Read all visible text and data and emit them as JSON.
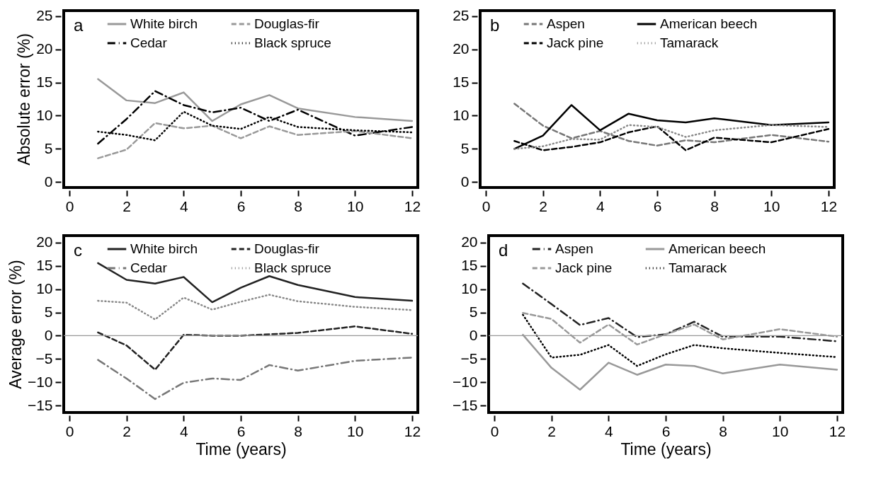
{
  "chart_data": [
    {
      "type": "line",
      "title": "a",
      "ylabel": "Absolute error (%)",
      "x": [
        1,
        2,
        3,
        4,
        5,
        6,
        7,
        8,
        10,
        12
      ],
      "xlim": [
        -0.2,
        12.2
      ],
      "xticks": [
        0,
        2,
        4,
        6,
        8,
        10,
        12
      ],
      "ylim": [
        -0.8,
        25.8
      ],
      "yticks": [
        0,
        5,
        10,
        15,
        20,
        25
      ],
      "grid": false,
      "legend": "top",
      "series": [
        {
          "name": "White birch",
          "color": "#999999",
          "line_style": "solid",
          "values": [
            15.5,
            12.3,
            11.9,
            13.5,
            9.2,
            11.7,
            13.1,
            11.1,
            9.8,
            9.2
          ]
        },
        {
          "name": "Cedar",
          "color": "#000000",
          "line_style": "dashdot",
          "values": [
            5.8,
            9.5,
            13.7,
            11.6,
            10.5,
            11.2,
            9.2,
            10.9,
            7.0,
            8.3
          ]
        },
        {
          "name": "Douglas-fir",
          "color": "#999999",
          "line_style": "dashed",
          "values": [
            3.6,
            4.9,
            8.9,
            8.1,
            8.5,
            6.6,
            8.4,
            7.1,
            7.7,
            6.6
          ]
        },
        {
          "name": "Black spruce",
          "color": "#000000",
          "line_style": "dotted",
          "values": [
            7.6,
            7.1,
            6.3,
            10.6,
            8.5,
            8.0,
            9.8,
            8.3,
            7.8,
            7.5
          ]
        }
      ]
    },
    {
      "type": "line",
      "title": "b",
      "x": [
        1,
        2,
        3,
        4,
        5,
        6,
        7,
        8,
        10,
        12
      ],
      "xlim": [
        -0.2,
        12.2
      ],
      "xticks": [
        0,
        2,
        4,
        6,
        8,
        10,
        12
      ],
      "ylim": [
        -0.8,
        25.8
      ],
      "yticks": [
        0,
        5,
        10,
        15,
        20,
        25
      ],
      "grid": false,
      "legend": "top",
      "series": [
        {
          "name": "Aspen",
          "color": "#777777",
          "line_style": "dashed",
          "values": [
            11.8,
            8.5,
            6.6,
            7.7,
            6.2,
            5.5,
            6.3,
            6.0,
            7.1,
            6.1
          ]
        },
        {
          "name": "Jack pine",
          "color": "#000000",
          "line_style": "dashed",
          "values": [
            6.2,
            4.8,
            5.3,
            6.0,
            7.5,
            8.4,
            4.8,
            6.7,
            6.0,
            8.0
          ]
        },
        {
          "name": "American beech",
          "color": "#000000",
          "line_style": "solid",
          "values": [
            5.0,
            7.0,
            11.6,
            7.8,
            10.3,
            9.3,
            9.0,
            9.6,
            8.6,
            9.0
          ]
        },
        {
          "name": "Tamarack",
          "color": "#888888",
          "line_style": "dotted",
          "values": [
            5.0,
            5.4,
            6.5,
            6.4,
            8.6,
            8.3,
            6.8,
            7.8,
            8.6,
            8.3
          ]
        }
      ]
    },
    {
      "type": "line",
      "title": "c",
      "xlabel": "Time (years)",
      "ylabel": "Average error (%)",
      "x": [
        1,
        2,
        3,
        4,
        5,
        6,
        7,
        8,
        10,
        12
      ],
      "xlim": [
        -0.2,
        12.2
      ],
      "xticks": [
        0,
        2,
        4,
        6,
        8,
        10,
        12
      ],
      "ylim": [
        -16.5,
        21.5
      ],
      "yticks": [
        -15,
        -10,
        -5,
        0,
        5,
        10,
        15,
        20
      ],
      "grid": false,
      "legend": "top",
      "ref_lines": [
        {
          "axis": "y",
          "value": 0,
          "color": "#999999"
        }
      ],
      "series": [
        {
          "name": "White birch",
          "color": "#222222",
          "line_style": "solid",
          "values": [
            15.6,
            12.0,
            11.2,
            12.6,
            7.2,
            10.3,
            12.8,
            10.9,
            8.3,
            7.5
          ]
        },
        {
          "name": "Cedar",
          "color": "#777777",
          "line_style": "dashdot",
          "values": [
            -5.2,
            -9.2,
            -13.6,
            -10.1,
            -9.2,
            -9.5,
            -6.3,
            -7.5,
            -5.4,
            -4.7
          ]
        },
        {
          "name": "Douglas-fir",
          "color": "#222222",
          "line_style": "dashed",
          "values": [
            0.7,
            -2.1,
            -7.3,
            0.2,
            0.0,
            0.0,
            0.3,
            0.6,
            2.0,
            0.4
          ]
        },
        {
          "name": "Black spruce",
          "color": "#888888",
          "line_style": "dotted",
          "values": [
            7.5,
            7.1,
            3.5,
            8.2,
            5.6,
            7.3,
            8.8,
            7.4,
            6.2,
            5.5
          ]
        }
      ]
    },
    {
      "type": "line",
      "title": "d",
      "xlabel": "Time (years)",
      "x": [
        1,
        2,
        3,
        4,
        5,
        6,
        7,
        8,
        10,
        12
      ],
      "xlim": [
        -0.2,
        12.2
      ],
      "xticks": [
        0,
        2,
        4,
        6,
        8,
        10,
        12
      ],
      "ylim": [
        -16.5,
        21.5
      ],
      "yticks": [
        -15,
        -10,
        -5,
        0,
        5,
        10,
        15,
        20
      ],
      "grid": false,
      "legend": "top",
      "ref_lines": [
        {
          "axis": "y",
          "value": 0,
          "color": "#999999"
        }
      ],
      "series": [
        {
          "name": "Aspen",
          "color": "#222222",
          "line_style": "dashdot",
          "values": [
            11.2,
            6.8,
            2.3,
            3.8,
            -0.3,
            0.3,
            3.0,
            -0.2,
            -0.2,
            -1.2
          ]
        },
        {
          "name": "Jack pine",
          "color": "#999999",
          "line_style": "dashed",
          "values": [
            4.9,
            3.6,
            -1.5,
            2.4,
            -1.9,
            0.3,
            2.4,
            -0.8,
            1.4,
            -0.2
          ]
        },
        {
          "name": "American beech",
          "color": "#999999",
          "line_style": "solid",
          "values": [
            0.2,
            -6.9,
            -11.6,
            -5.8,
            -8.4,
            -6.2,
            -6.5,
            -8.1,
            -6.2,
            -7.3
          ]
        },
        {
          "name": "Tamarack",
          "color": "#000000",
          "line_style": "dotted",
          "values": [
            4.5,
            -4.7,
            -4.1,
            -2.0,
            -6.5,
            -4.0,
            -2.0,
            -2.7,
            -3.7,
            -4.6
          ]
        }
      ]
    }
  ]
}
